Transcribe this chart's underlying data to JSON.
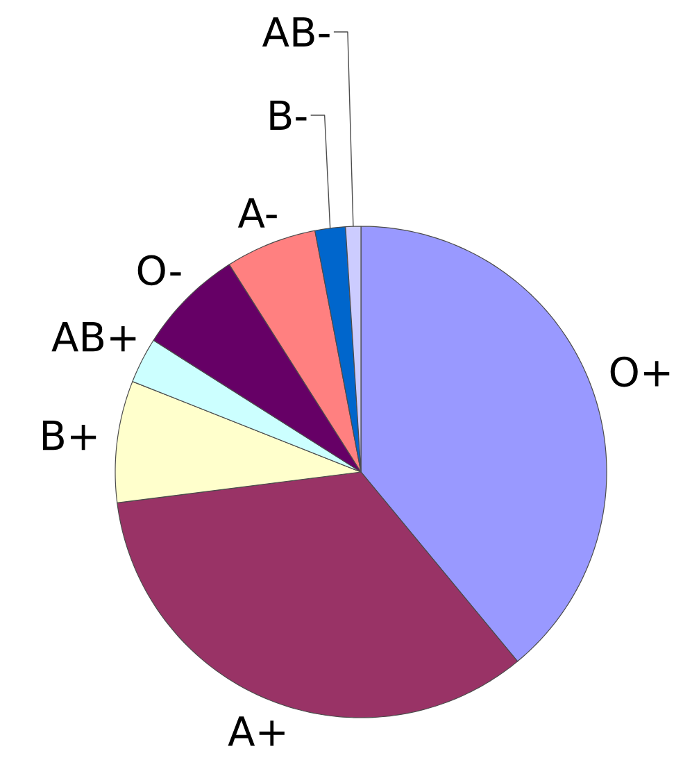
{
  "chart_data": {
    "type": "pie",
    "categories": [
      "O+",
      "A+",
      "B+",
      "AB+",
      "O-",
      "A-",
      "B-",
      "AB-"
    ],
    "values": [
      39,
      34,
      8,
      3,
      7,
      6,
      2,
      1
    ],
    "colors": [
      "#9999ff",
      "#993366",
      "#ffffcc",
      "#ccffff",
      "#660066",
      "#ff8080",
      "#0066cc",
      "#ccccff"
    ]
  }
}
